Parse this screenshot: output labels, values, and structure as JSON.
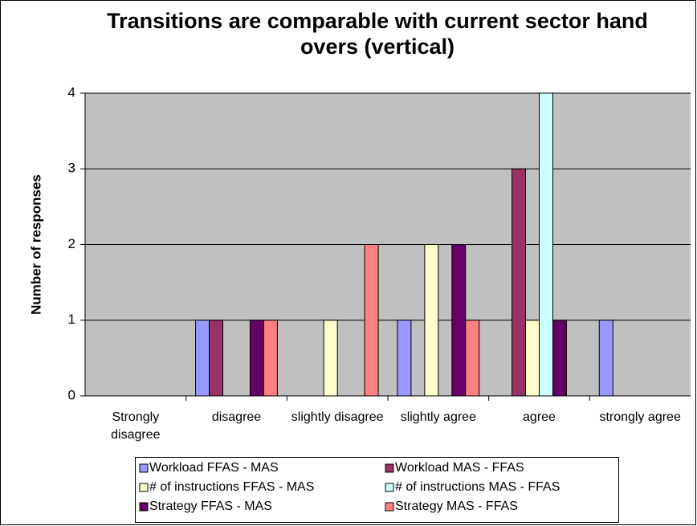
{
  "chart_data": {
    "type": "bar",
    "title": "Transitions are comparable with current sector hand overs (vertical)",
    "y_label": "Number of responses",
    "categories": [
      "Strongly disagree",
      "disagree",
      "slightly disagree",
      "slightly agree",
      "agree",
      "strongly agree"
    ],
    "series": [
      {
        "name": "Workload FFAS - MAS",
        "color": "#9999ff",
        "values": [
          0,
          1,
          0,
          1,
          0,
          1
        ]
      },
      {
        "name": "Workload MAS - FFAS",
        "color": "#993366",
        "values": [
          0,
          1,
          0,
          0,
          3,
          0
        ]
      },
      {
        "name": "# of instructions FFAS - MAS",
        "color": "#ffffcc",
        "values": [
          0,
          0,
          1,
          2,
          1,
          0
        ]
      },
      {
        "name": "# of instructions MAS - FFAS",
        "color": "#ccffff",
        "values": [
          0,
          0,
          0,
          0,
          4,
          0
        ]
      },
      {
        "name": "Strategy FFAS - MAS",
        "color": "#660066",
        "values": [
          0,
          1,
          0,
          2,
          1,
          0
        ]
      },
      {
        "name": "Strategy MAS - FFAS",
        "color": "#ff8080",
        "values": [
          0,
          1,
          2,
          1,
          0,
          0
        ]
      }
    ],
    "ylim": [
      0,
      4
    ],
    "yticks": [
      0,
      1,
      2,
      3,
      4
    ],
    "grid": true,
    "plot_background": "#c0c0c0",
    "legend": "bottom"
  }
}
